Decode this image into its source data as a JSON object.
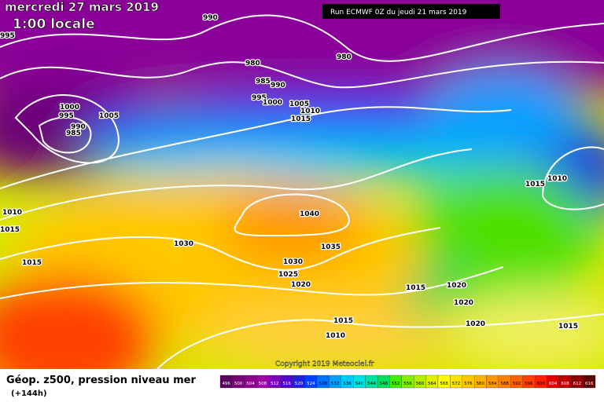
{
  "header": {
    "date": "mercredi 27 mars 2019",
    "time": "1:00 locale",
    "run": "Run ECMWF 0Z du jeudi 21 mars 2019"
  },
  "footer": {
    "title": "Géop. z500, pression niveau mer",
    "lead": "(+144h)",
    "copyright": "Copyright 2019 Meteociel.fr"
  },
  "isobar_labels": [
    990,
    995,
    980,
    980,
    985,
    990,
    995,
    1000,
    1005,
    1010,
    1015,
    1000,
    995,
    990,
    985,
    1005,
    1040,
    1035,
    1030,
    1030,
    1025,
    1020,
    1015,
    1010,
    1010,
    1015,
    1015,
    1020,
    1015,
    1020,
    1020,
    1015,
    1010,
    1015
  ],
  "scale": {
    "labels": [
      496,
      500,
      504,
      508,
      512,
      516,
      520,
      524,
      528,
      532,
      536,
      540,
      544,
      548,
      552,
      556,
      560,
      564,
      568,
      572,
      576,
      580,
      584,
      588,
      592,
      596,
      600,
      604,
      608,
      612,
      616
    ],
    "colors": [
      "#5a0060",
      "#7a007a",
      "#900090",
      "#a000a8",
      "#8000c0",
      "#5000d0",
      "#2020e0",
      "#0040ff",
      "#0070ff",
      "#00a0ff",
      "#00c8ff",
      "#00e0e0",
      "#00e0a0",
      "#00e060",
      "#40f000",
      "#80f000",
      "#b0f000",
      "#e0f000",
      "#ffff00",
      "#ffe000",
      "#ffc800",
      "#ffb000",
      "#ff9800",
      "#ff8000",
      "#ff6000",
      "#ff4000",
      "#ff2000",
      "#e00000",
      "#c00000",
      "#900000",
      "#600000"
    ]
  }
}
